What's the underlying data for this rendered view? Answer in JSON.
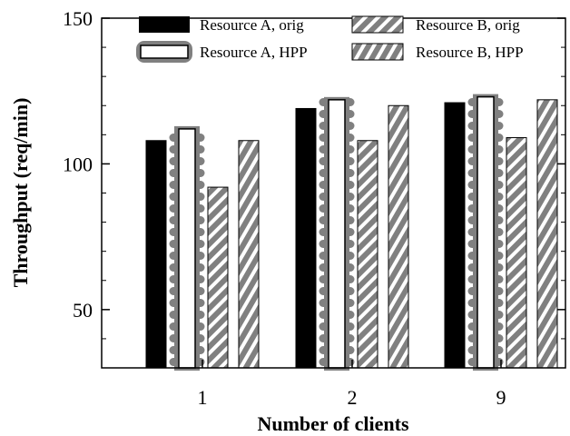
{
  "chart_data": {
    "type": "bar",
    "title": "",
    "xlabel": "Number of clients",
    "ylabel": "Throughput (req/min)",
    "categories": [
      "1",
      "2",
      "9"
    ],
    "ylim": [
      30,
      150
    ],
    "yticks": [
      50,
      100,
      150
    ],
    "grid": false,
    "legend_position": "top, inside plot, 2 columns",
    "series": [
      {
        "name": "Resource A, orig",
        "values": [
          108,
          119,
          121
        ],
        "pattern": "solid-black"
      },
      {
        "name": "Resource A, HPP",
        "values": [
          112,
          122,
          123
        ],
        "pattern": "white-with-gray-horizontal-stripes"
      },
      {
        "name": "Resource B, orig",
        "values": [
          92,
          108,
          109
        ],
        "pattern": "gray-white-diagonal-stripes"
      },
      {
        "name": "Resource B, HPP",
        "values": [
          108,
          120,
          122
        ],
        "pattern": "white-gray-diagonal-stripes"
      }
    ]
  }
}
